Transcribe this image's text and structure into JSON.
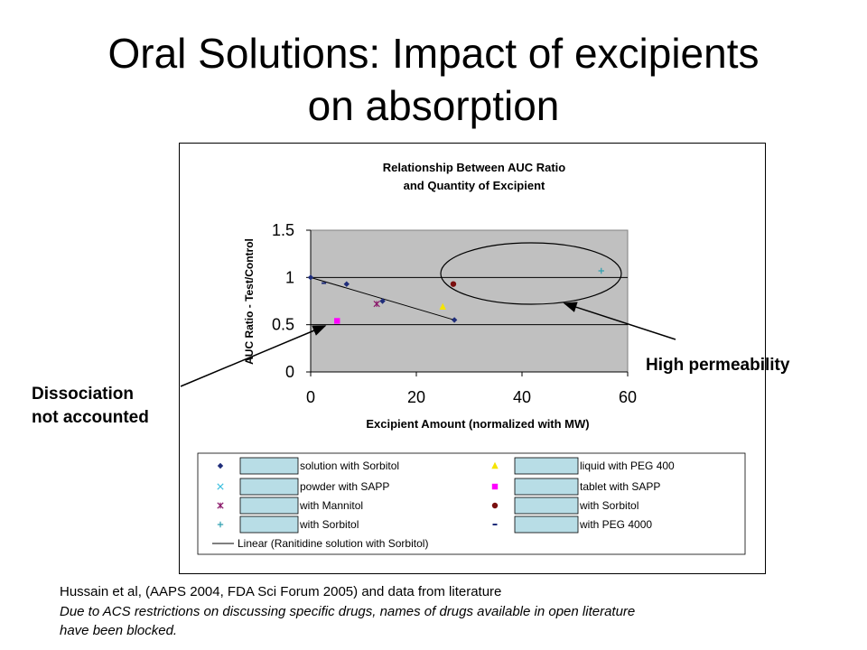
{
  "slide": {
    "title_line1": "Oral Solutions: Impact of excipients",
    "title_line2": "on absorption",
    "annotation_high": "High permeability",
    "annotation_dissoc_line1": "Dissociation",
    "annotation_dissoc_line2": "not accounted",
    "footer_line1": "Hussain et al, (AAPS 2004, FDA Sci Forum 2005) and data from literature",
    "footer_line2": "Due to ACS restrictions on discussing specific drugs, names of drugs available in open literature",
    "footer_line3": "have been blocked."
  },
  "chart_data": {
    "type": "scatter",
    "title": "Relationship Between AUC Ratio",
    "subtitle": "and Quantity of Excipient",
    "xlabel": "Excipient Amount (normalized with MW)",
    "ylabel": "AUC Ratio - Test/Control",
    "xlim": [
      0,
      60
    ],
    "ylim": [
      0,
      1.5
    ],
    "xticks": [
      "0",
      "20",
      "40",
      "60"
    ],
    "yticks": [
      "0",
      "0.5",
      "1",
      "1.5"
    ],
    "plot_background": "#c0c0c0",
    "grid": true,
    "legend_position": "bottom",
    "series": [
      {
        "name": "solution with Sorbitol",
        "marker": "diamond",
        "color": "#1f2d7a",
        "x": [
          0,
          6.8,
          13.6,
          27.2
        ],
        "y": [
          1.0,
          0.93,
          0.75,
          0.55
        ]
      },
      {
        "name": "powder with SAPP",
        "marker": "x",
        "color": "#3fc0e0",
        "x": [],
        "y": []
      },
      {
        "name": "with Mannitol",
        "marker": "star",
        "color": "#8b1a6b",
        "x": [
          12.5
        ],
        "y": [
          0.72
        ]
      },
      {
        "name": "with Sorbitol",
        "marker": "plus",
        "color": "#2f9fb0",
        "x": [
          55
        ],
        "y": [
          1.07
        ]
      },
      {
        "name": "liquid with PEG 400",
        "marker": "triangle",
        "color": "#f5e400",
        "x": [
          25
        ],
        "y": [
          0.69
        ]
      },
      {
        "name": "tablet with SAPP",
        "marker": "square",
        "color": "#ff00ff",
        "x": [
          5
        ],
        "y": [
          0.54
        ]
      },
      {
        "name": "with Sorbitol",
        "marker": "circle",
        "color": "#7a0f0f",
        "x": [
          27
        ],
        "y": [
          0.93
        ]
      },
      {
        "name": "with PEG 4000",
        "marker": "dash",
        "color": "#1f2d7a",
        "x": [
          2.5
        ],
        "y": [
          0.94
        ]
      }
    ],
    "trendline": {
      "name": "Linear (Ranitidine solution with Sorbitol)",
      "x": [
        0,
        27.2
      ],
      "y": [
        1.0,
        0.55
      ]
    }
  }
}
